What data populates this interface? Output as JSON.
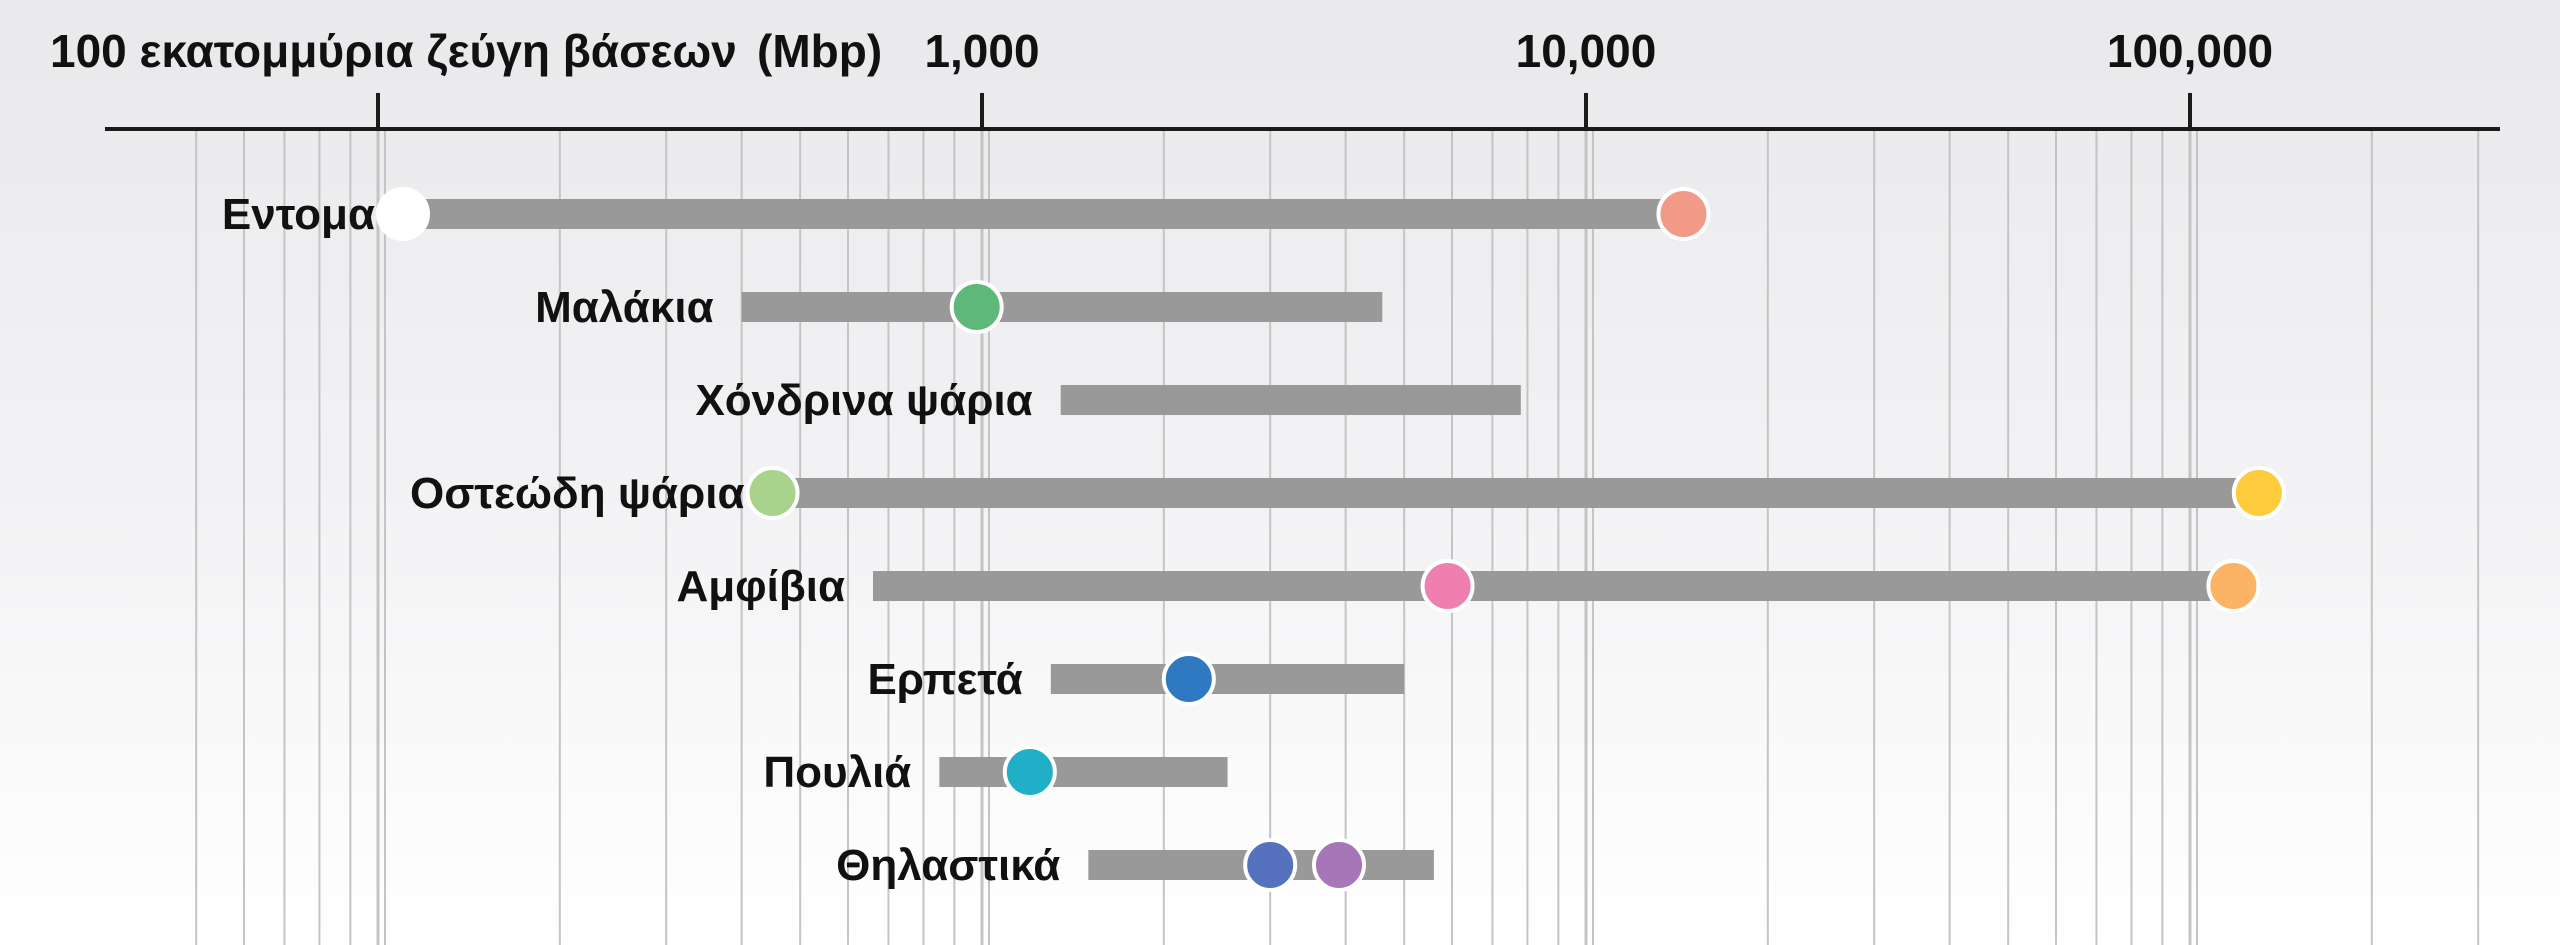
{
  "chart_data": {
    "type": "range",
    "xscale": "log",
    "xlim": [
      50,
      300000
    ],
    "axis_title": "100 εκατομμύρια ζεύγη βάσεων",
    "axis_unit": "(Mbp)",
    "ticks": [
      {
        "value": 100,
        "label": ""
      },
      {
        "value": 1000,
        "label": "1,000"
      },
      {
        "value": 10000,
        "label": "10,000"
      },
      {
        "value": 100000,
        "label": "100,000"
      }
    ],
    "categories": [
      {
        "label": "Εντομα",
        "min": 110,
        "max": 14500,
        "dots": [
          {
            "value": 110,
            "color": "#ffffff"
          },
          {
            "value": 14500,
            "color": "#f29a88"
          }
        ]
      },
      {
        "label": "Μαλάκια",
        "min": 400,
        "max": 4600,
        "dots": [
          {
            "value": 980,
            "color": "#5db87a"
          }
        ]
      },
      {
        "label": "Χόνδρινα ψάρια",
        "min": 1350,
        "max": 7800,
        "dots": []
      },
      {
        "label": "Οστεώδη ψάρια",
        "min": 450,
        "max": 130000,
        "dots": [
          {
            "value": 450,
            "color": "#a9d38c"
          },
          {
            "value": 130000,
            "color": "#fdcb3b"
          }
        ]
      },
      {
        "label": "Αμφίβια",
        "min": 660,
        "max": 118000,
        "dots": [
          {
            "value": 5900,
            "color": "#ef7fae"
          },
          {
            "value": 118000,
            "color": "#fbb366"
          }
        ]
      },
      {
        "label": "Ερπετά",
        "min": 1300,
        "max": 5000,
        "dots": [
          {
            "value": 2200,
            "color": "#2f78c2"
          }
        ]
      },
      {
        "label": "Πουλιά",
        "min": 850,
        "max": 2550,
        "dots": [
          {
            "value": 1200,
            "color": "#1fb0c8"
          }
        ]
      },
      {
        "label": "Θηλαστικά",
        "min": 1500,
        "max": 5600,
        "dots": [
          {
            "value": 3000,
            "color": "#5671bd"
          },
          {
            "value": 3900,
            "color": "#a676b9"
          }
        ]
      }
    ],
    "colors": {
      "bar": "#999999",
      "axis": "#1a1a1a",
      "grid": "#c4c4c4",
      "dot_stroke": "#ffffff",
      "text": "#111111"
    }
  }
}
